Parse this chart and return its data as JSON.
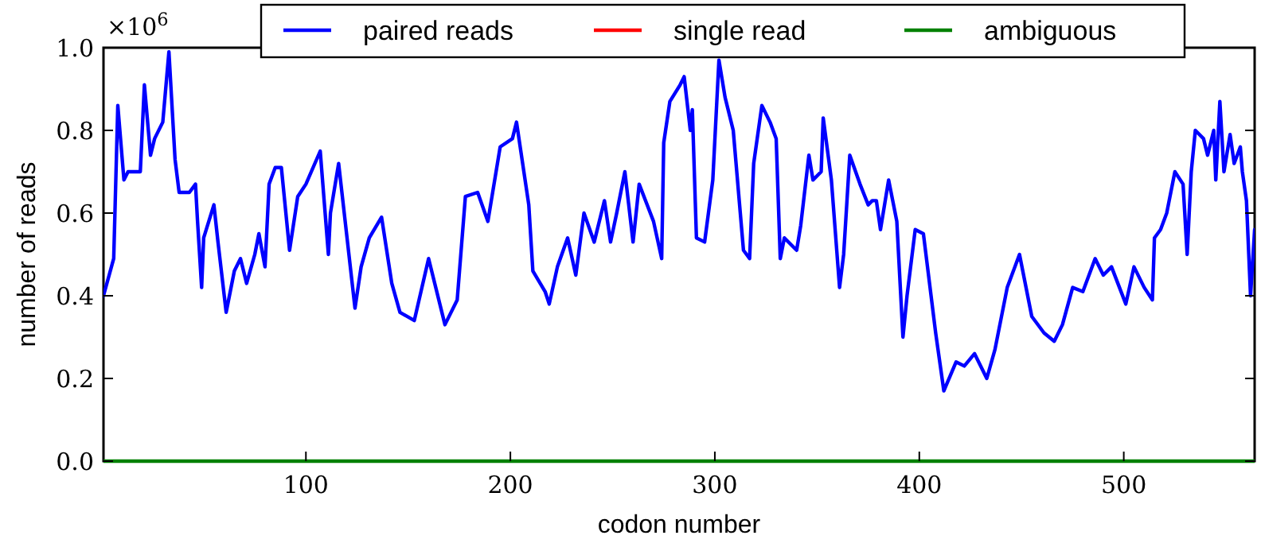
{
  "chart_data": {
    "type": "line",
    "xlabel": "codon number",
    "ylabel": "number of reads",
    "annotations": [
      "×10$^{6}$"
    ],
    "xlim": [
      1,
      564
    ],
    "xticks": [
      100,
      200,
      300,
      400,
      500
    ],
    "ylim": [
      0,
      1.0
    ],
    "yticks": [
      {
        "value": 0,
        "label": "0.0"
      },
      {
        "value": 0.2,
        "label": "0.2"
      },
      {
        "value": 0.4,
        "label": "0.4"
      },
      {
        "value": 0.6,
        "label": "0.6"
      },
      {
        "value": 0.8,
        "label": "0.8"
      },
      {
        "value": 1.0,
        "label": "1.0"
      }
    ],
    "grid": false,
    "legend": "top",
    "line_style": "solid",
    "series": [
      {
        "name": "paired reads",
        "color": "#0000ff",
        "x": [
          1,
          6,
          8,
          11,
          13,
          19,
          21,
          24,
          26,
          30,
          33,
          36,
          38,
          43,
          46,
          47,
          49,
          50,
          55,
          57,
          61,
          65,
          68,
          71,
          75,
          77,
          80,
          82,
          85,
          88,
          92,
          96,
          100,
          107,
          111,
          112,
          116,
          124,
          127,
          131,
          137,
          142,
          146,
          153,
          160,
          168,
          174,
          178,
          184,
          189,
          195,
          201,
          203,
          209,
          211,
          217,
          219,
          223,
          228,
          232,
          236,
          241,
          246,
          249,
          252,
          256,
          260,
          263,
          270,
          274,
          275,
          278,
          283,
          285,
          288,
          289,
          291,
          295,
          299,
          302,
          305,
          309,
          314,
          317,
          319,
          323,
          327,
          330,
          332,
          334,
          340,
          342,
          346,
          348,
          352,
          353,
          357,
          361,
          363,
          366,
          371,
          375,
          377,
          379,
          381,
          385,
          389,
          392,
          394,
          398,
          402,
          408,
          412,
          418,
          422,
          427,
          433,
          437,
          443,
          449,
          455,
          461,
          466,
          470,
          475,
          480,
          486,
          490,
          494,
          501,
          505,
          510,
          514,
          515,
          518,
          521,
          525,
          529,
          531,
          533,
          535,
          539,
          541,
          544,
          545,
          547,
          549,
          552,
          554,
          557,
          558,
          560,
          562,
          564
        ],
        "values": [
          0.4,
          0.49,
          0.86,
          0.68,
          0.7,
          0.7,
          0.91,
          0.74,
          0.78,
          0.82,
          0.99,
          0.73,
          0.65,
          0.65,
          0.67,
          0.58,
          0.42,
          0.54,
          0.62,
          0.53,
          0.36,
          0.46,
          0.49,
          0.43,
          0.5,
          0.55,
          0.47,
          0.67,
          0.71,
          0.71,
          0.51,
          0.64,
          0.67,
          0.75,
          0.5,
          0.6,
          0.72,
          0.37,
          0.47,
          0.54,
          0.59,
          0.43,
          0.36,
          0.34,
          0.49,
          0.33,
          0.39,
          0.64,
          0.65,
          0.58,
          0.76,
          0.78,
          0.82,
          0.62,
          0.46,
          0.41,
          0.38,
          0.47,
          0.54,
          0.45,
          0.6,
          0.53,
          0.63,
          0.53,
          0.6,
          0.7,
          0.53,
          0.67,
          0.58,
          0.49,
          0.77,
          0.87,
          0.91,
          0.93,
          0.8,
          0.85,
          0.54,
          0.53,
          0.68,
          0.97,
          0.88,
          0.8,
          0.51,
          0.49,
          0.72,
          0.86,
          0.82,
          0.78,
          0.49,
          0.54,
          0.51,
          0.57,
          0.74,
          0.68,
          0.7,
          0.83,
          0.68,
          0.42,
          0.5,
          0.74,
          0.67,
          0.62,
          0.63,
          0.63,
          0.56,
          0.68,
          0.58,
          0.3,
          0.4,
          0.56,
          0.55,
          0.31,
          0.17,
          0.24,
          0.23,
          0.26,
          0.2,
          0.27,
          0.42,
          0.5,
          0.35,
          0.31,
          0.29,
          0.33,
          0.42,
          0.41,
          0.49,
          0.45,
          0.47,
          0.38,
          0.47,
          0.42,
          0.39,
          0.54,
          0.56,
          0.6,
          0.7,
          0.67,
          0.5,
          0.7,
          0.8,
          0.78,
          0.74,
          0.8,
          0.68,
          0.87,
          0.7,
          0.79,
          0.72,
          0.76,
          0.7,
          0.63,
          0.4,
          0.56
        ]
      },
      {
        "name": "single read",
        "color": "#ff0000"
      },
      {
        "name": "ambiguous",
        "color": "#008000",
        "x": [
          1,
          564
        ],
        "values": [
          0,
          0
        ]
      }
    ]
  }
}
